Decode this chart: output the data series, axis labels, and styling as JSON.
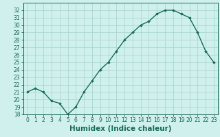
{
  "x": [
    0,
    1,
    2,
    3,
    4,
    5,
    6,
    7,
    8,
    9,
    10,
    11,
    12,
    13,
    14,
    15,
    16,
    17,
    18,
    19,
    20,
    21,
    22,
    23
  ],
  "y": [
    21.0,
    21.5,
    21.0,
    19.8,
    19.5,
    18.0,
    19.0,
    21.0,
    22.5,
    24.0,
    25.0,
    26.5,
    28.0,
    29.0,
    30.0,
    30.5,
    31.5,
    32.0,
    32.0,
    31.5,
    31.0,
    29.0,
    26.5,
    25.0
  ],
  "line_color": "#1a6b5a",
  "marker": "D",
  "marker_size": 1.8,
  "bg_color": "#cff0ec",
  "grid_color": "#a0d4cc",
  "xlabel": "Humidex (Indice chaleur)",
  "ylim": [
    18,
    33
  ],
  "xlim": [
    -0.5,
    23.5
  ],
  "yticks": [
    18,
    19,
    20,
    21,
    22,
    23,
    24,
    25,
    26,
    27,
    28,
    29,
    30,
    31,
    32
  ],
  "xticks": [
    0,
    1,
    2,
    3,
    4,
    5,
    6,
    7,
    8,
    9,
    10,
    11,
    12,
    13,
    14,
    15,
    16,
    17,
    18,
    19,
    20,
    21,
    22,
    23
  ],
  "tick_fontsize": 5.5,
  "xlabel_fontsize": 7.5,
  "line_width": 1.0
}
